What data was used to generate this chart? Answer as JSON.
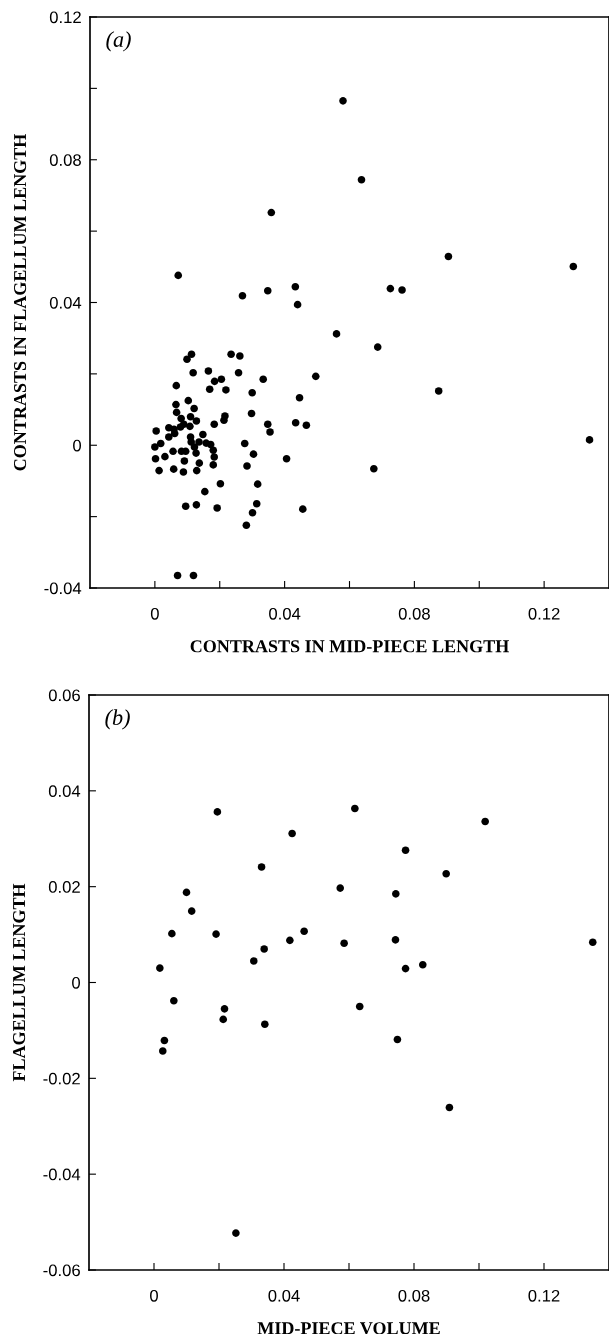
{
  "chart_data": [
    {
      "type": "scatter",
      "xlabel": "CONTRASTS IN MID-PIECE LENGTH",
      "ylabel": "CONTRASTS IN FLAGELLUM LENGTH",
      "annotations": [
        "(a)"
      ],
      "color": "#000000",
      "marker": "circle",
      "xlim": [
        -0.02,
        0.14
      ],
      "ylim": [
        -0.04,
        0.12
      ],
      "xticks": [
        0,
        {
          "value": 0.02,
          "label": null
        },
        0.04,
        {
          "value": 0.06,
          "label": null
        },
        0.08,
        {
          "value": 0.1,
          "label": null
        },
        0.12
      ],
      "yticks": [
        -0.04,
        {
          "value": -0.02,
          "label": null
        },
        0,
        {
          "value": 0.02,
          "label": null
        },
        0.04,
        {
          "value": 0.06,
          "label": null
        },
        0.08,
        {
          "value": 0.1,
          "label": null
        },
        0.12
      ],
      "x": [
        0.058,
        0.0637,
        0.0359,
        0.0072,
        0.027,
        0.0348,
        0.0433,
        0.044,
        0.0726,
        0.0762,
        0.0905,
        0.129,
        0.056,
        0.0687,
        0.0496,
        0.0446,
        0.0434,
        0.0467,
        0.0875,
        0.134,
        0.0406,
        0.0675,
        0.0456,
        0.0113,
        0.0099,
        0.0235,
        0.0262,
        0.0118,
        0.0165,
        0.0258,
        0.0334,
        0.0066,
        0.0184,
        0.0205,
        0.0169,
        0.0219,
        0.03,
        0.0065,
        0.0103,
        0.0121,
        0.0067,
        0.0298,
        0.0216,
        0.0213,
        0.0081,
        0.011,
        0.0128,
        0.0183,
        0.0348,
        0.0355,
        0.0089,
        0.0108,
        0.0043,
        0.0004,
        0.0059,
        0.0079,
        0.0043,
        0.0061,
        0.011,
        0.0148,
        0.0112,
        0.0136,
        0.0158,
        0.0172,
        0.0122,
        0.0,
        0.0018,
        0.018,
        0.0277,
        0.0056,
        0.0082,
        0.0095,
        0.0127,
        0.0002,
        0.0031,
        0.0183,
        0.0091,
        0.0304,
        0.0013,
        0.0058,
        0.0088,
        0.0137,
        0.0129,
        0.018,
        0.0284,
        0.0202,
        0.0317,
        0.0154,
        0.0095,
        0.0128,
        0.0192,
        0.0314,
        0.0301,
        0.0282,
        0.007,
        0.0119
      ],
      "values": [
        0.0965,
        0.0744,
        0.0652,
        0.0476,
        0.0419,
        0.0433,
        0.0444,
        0.0394,
        0.0439,
        0.0435,
        0.0529,
        0.0501,
        0.0312,
        0.0275,
        0.0193,
        0.0133,
        0.0063,
        0.0056,
        0.0152,
        0.0015,
        -0.0038,
        -0.0066,
        -0.0179,
        0.0255,
        0.0241,
        0.0255,
        0.025,
        0.0203,
        0.0208,
        0.0203,
        0.0185,
        0.0167,
        0.0179,
        0.0185,
        0.0157,
        0.0155,
        0.0147,
        0.0114,
        0.0125,
        0.0103,
        0.0092,
        0.0089,
        0.0082,
        0.007,
        0.0075,
        0.008,
        0.0068,
        0.0059,
        0.0059,
        0.0037,
        0.0059,
        0.0053,
        0.0049,
        0.004,
        0.0045,
        0.0051,
        0.0023,
        0.0033,
        0.0023,
        0.003,
        0.0009,
        0.0009,
        0.0006,
        0.0002,
        -0.0005,
        -0.0005,
        0.0005,
        -0.0014,
        0.0005,
        -0.0017,
        -0.0017,
        -0.0017,
        -0.0022,
        -0.0038,
        -0.0032,
        -0.0033,
        -0.0044,
        -0.0025,
        -0.0071,
        -0.0067,
        -0.0075,
        -0.005,
        -0.0071,
        -0.0055,
        -0.0058,
        -0.0108,
        -0.0109,
        -0.013,
        -0.0171,
        -0.0167,
        -0.0176,
        -0.0164,
        -0.0189,
        -0.0224,
        -0.0365,
        -0.0365
      ]
    },
    {
      "type": "scatter",
      "xlabel": "MID-PIECE VOLUME",
      "ylabel": "FLAGELLUM LENGTH",
      "annotations": [
        "(b)"
      ],
      "color": "#000000",
      "marker": "circle",
      "xlim": [
        -0.02,
        0.14
      ],
      "ylim": [
        -0.06,
        0.06
      ],
      "xticks": [
        0,
        {
          "value": 0.02,
          "label": null
        },
        0.04,
        {
          "value": 0.06,
          "label": null
        },
        0.08,
        {
          "value": 0.1,
          "label": null
        },
        0.12
      ],
      "yticks": [
        -0.06,
        -0.04,
        -0.02,
        0,
        0.02,
        0.04,
        0.06
      ],
      "x": [
        0.0195,
        0.0618,
        0.0425,
        0.1019,
        0.0774,
        0.0331,
        0.0899,
        0.0573,
        0.0744,
        0.01,
        0.0116,
        0.0055,
        0.0191,
        0.0462,
        0.0418,
        0.0585,
        0.0743,
        0.135,
        0.0339,
        0.0307,
        0.0018,
        0.0774,
        0.0827,
        0.0061,
        0.0217,
        0.0213,
        0.0341,
        0.0633,
        0.0032,
        0.0027,
        0.0749,
        0.0909,
        0.0252
      ],
      "values": [
        0.0356,
        0.0363,
        0.0311,
        0.0336,
        0.0276,
        0.0241,
        0.0227,
        0.0197,
        0.0185,
        0.0188,
        0.0149,
        0.0102,
        0.0101,
        0.0107,
        0.0088,
        0.0082,
        0.0089,
        0.0084,
        0.007,
        0.0045,
        0.003,
        0.0029,
        0.0037,
        -0.0038,
        -0.0055,
        -0.0077,
        -0.0087,
        -0.005,
        -0.0121,
        -0.0143,
        -0.0119,
        -0.0261,
        -0.0523
      ]
    }
  ]
}
